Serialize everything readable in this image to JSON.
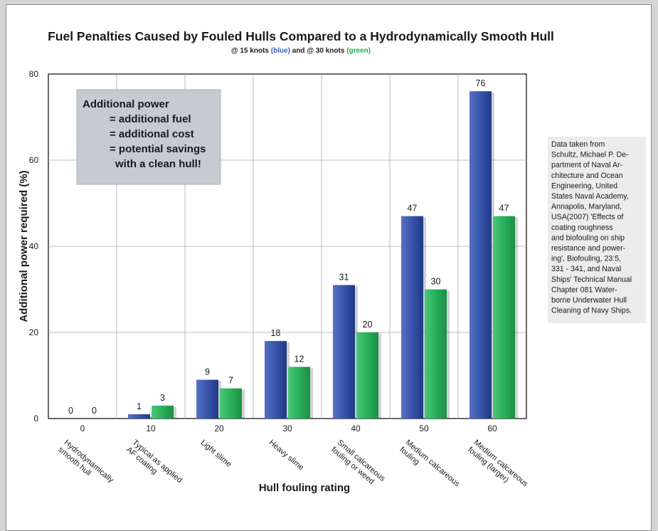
{
  "chart_data": {
    "type": "bar",
    "title": "Fuel Penalties Caused by Fouled Hulls Compared to a Hydrodynamically Smooth Hull",
    "subtitle": {
      "prefix": "@ 15 knots ",
      "blue": "(blue)",
      "middle": " and @ 30 knots ",
      "green": "(green)"
    },
    "xlabel": "Hull fouling rating",
    "ylabel": "Additional power required (%)",
    "ylim": [
      0,
      80
    ],
    "yticks": [
      0,
      20,
      40,
      60,
      80
    ],
    "grid": true,
    "categories": [
      {
        "rating": "0",
        "label_lines": [
          "Hydrodynamically",
          "smooth hull"
        ]
      },
      {
        "rating": "10",
        "label_lines": [
          "Typical as applied",
          "AF coating"
        ]
      },
      {
        "rating": "20",
        "label_lines": [
          "Light slime"
        ]
      },
      {
        "rating": "30",
        "label_lines": [
          "Heavy slime"
        ]
      },
      {
        "rating": "40",
        "label_lines": [
          "Small calcareous",
          "fouling or weed"
        ]
      },
      {
        "rating": "50",
        "label_lines": [
          "Medium calcareous",
          "fouling"
        ]
      },
      {
        "rating": "60",
        "label_lines": [
          "Medium calcareous",
          "fouling (larger)"
        ]
      }
    ],
    "series": [
      {
        "key": "15knots",
        "color": "#2e4fa6",
        "values": [
          0,
          1,
          9,
          18,
          31,
          47,
          76
        ]
      },
      {
        "key": "30knots",
        "color": "#27ae5a",
        "values": [
          0,
          3,
          7,
          12,
          20,
          30,
          47
        ]
      }
    ],
    "annotation": {
      "lines": [
        "Additional power",
        "= additional fuel",
        "= additional cost",
        "= potential savings",
        "with a clean hull!"
      ]
    }
  },
  "source_note": {
    "lines": [
      "Data taken from",
      "Schultz, Michael P. De-",
      "partment of Naval Ar-",
      "chitecture and Ocean",
      "Engineering, United",
      "States Naval Academy,",
      "Annapolis, Maryland,",
      "USA(2007) 'Effects of",
      "coating roughness",
      "and biofouling on ship",
      "resistance and power-",
      "ing', Biofouling, 23:5,",
      "331 - 341, and Naval",
      "Ships' Technical Manual",
      "Chapter 081 Water-",
      "borne Underwater Hull",
      "Cleaning of Navy Ships."
    ]
  },
  "colors": {
    "blue_text": "#2e5fbf",
    "green_text": "#22b04b",
    "annotation_bg": "#c4cbd3",
    "note_bg": "#ececec"
  }
}
